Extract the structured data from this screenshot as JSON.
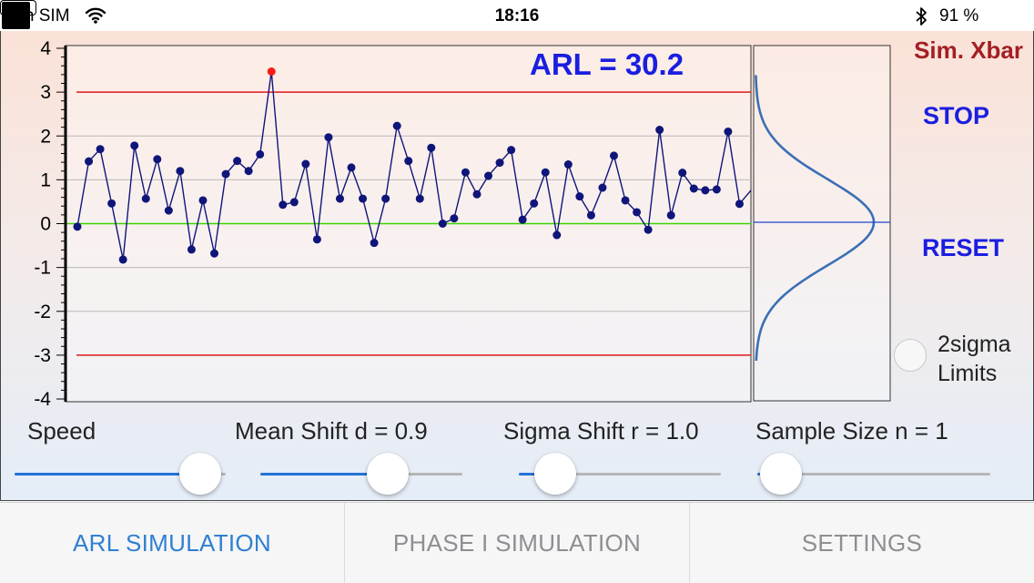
{
  "status_bar": {
    "carrier": "Sin SIM",
    "time": "18:16",
    "battery_percent": "91 %",
    "battery_level": 0.91
  },
  "app": {
    "title": "Sim. Xbar",
    "arl_text": "ARL = 30.2",
    "stop_label": "STOP",
    "reset_label": "RESET",
    "twosigma_label": "2sigma Limits",
    "twosigma_checked": false
  },
  "sliders": [
    {
      "key": "speed",
      "label": "Speed",
      "fraction": 0.88
    },
    {
      "key": "mean_shift",
      "label": "Mean Shift d = 0.9",
      "fraction": 0.63
    },
    {
      "key": "sigma_shift",
      "label": "Sigma Shift r = 1.0",
      "fraction": 0.18
    },
    {
      "key": "sample_size",
      "label": "Sample Size n = 1",
      "fraction": 0.1
    }
  ],
  "tabs": [
    {
      "label": "ARL SIMULATION",
      "active": true
    },
    {
      "label": "PHASE I SIMULATION",
      "active": false
    },
    {
      "label": "SETTINGS",
      "active": false
    }
  ],
  "colors": {
    "active_tab": "#2f7fd3",
    "inactive_tab": "#8e8e93",
    "limit_line": "#e0191c",
    "center_line": "#3cd400",
    "series": "#10157a",
    "alarm_point": "#ff1a1a",
    "mean_line": "#2046d0",
    "accent": "#1a1ee0",
    "title": "#a31f24"
  },
  "chart_data": {
    "type": "line",
    "ylim": [
      -4,
      4
    ],
    "yticks": [
      "4",
      "3",
      "2",
      "1",
      "0",
      "-1",
      "-2",
      "-3",
      "-4"
    ],
    "ucl": 3,
    "lcl": -3,
    "center": 0,
    "grid": true,
    "values": [
      -0.07,
      1.42,
      1.7,
      0.46,
      -0.82,
      1.78,
      0.57,
      1.47,
      0.3,
      1.2,
      -0.59,
      0.53,
      -0.68,
      1.13,
      1.43,
      1.2,
      1.58,
      3.47,
      0.43,
      0.49,
      1.36,
      -0.36,
      1.97,
      0.57,
      1.28,
      0.57,
      -0.44,
      0.57,
      2.23,
      1.43,
      0.57,
      1.73,
      0.0,
      0.12,
      1.17,
      0.67,
      1.09,
      1.39,
      1.68,
      0.09,
      0.46,
      1.17,
      -0.26,
      1.35,
      0.62,
      0.19,
      0.82,
      1.55,
      0.53,
      0.26,
      -0.14,
      2.14,
      0.19,
      1.16,
      0.8,
      0.76,
      0.78,
      2.1,
      0.45,
      0.76
    ],
    "alarm_index": 17
  },
  "distribution": {
    "mean": 0.86,
    "sigma": 1.0
  }
}
